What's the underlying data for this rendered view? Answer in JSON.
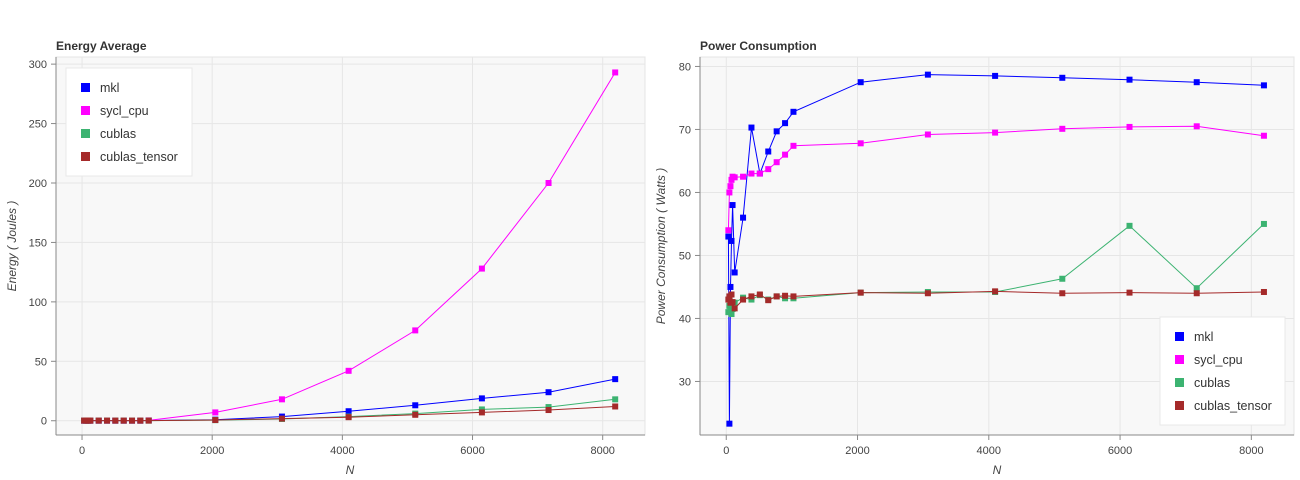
{
  "chart_data": [
    {
      "type": "line",
      "title": "Energy Average",
      "xlabel": "N",
      "ylabel": "Energy ( Joules )",
      "xlim": [
        -400,
        8650
      ],
      "ylim": [
        -12,
        306
      ],
      "xticks": [
        0,
        2000,
        4000,
        6000,
        8000
      ],
      "yticks": [
        0,
        50,
        100,
        150,
        200,
        250,
        300
      ],
      "grid": true,
      "legend_position": "top-left",
      "series": [
        {
          "name": "mkl",
          "color": "#0000ff",
          "x": [
            32,
            64,
            96,
            128,
            256,
            384,
            512,
            640,
            768,
            896,
            1024,
            2048,
            3072,
            4096,
            5120,
            6144,
            7168,
            8192
          ],
          "y": [
            0.1,
            0.1,
            0.1,
            0.1,
            0.1,
            0.1,
            0.1,
            0.1,
            0.1,
            0.1,
            0.2,
            0.9,
            3.5,
            8.0,
            13.0,
            18.8,
            24.0,
            35.0
          ]
        },
        {
          "name": "sycl_cpu",
          "color": "#ff00ff",
          "x": [
            32,
            64,
            96,
            128,
            256,
            384,
            512,
            640,
            768,
            896,
            1024,
            2048,
            3072,
            4096,
            5120,
            6144,
            7168,
            8192
          ],
          "y": [
            0.1,
            0.1,
            0.1,
            0.1,
            0.1,
            0.1,
            0.1,
            0.1,
            0.1,
            0.1,
            0.3,
            7.0,
            18.0,
            42.0,
            76.0,
            128.0,
            200.0,
            293.0
          ]
        },
        {
          "name": "cublas",
          "color": "#3cb371",
          "x": [
            32,
            64,
            96,
            128,
            256,
            384,
            512,
            640,
            768,
            896,
            1024,
            2048,
            3072,
            4096,
            5120,
            6144,
            7168,
            8192
          ],
          "y": [
            0.1,
            0.1,
            0.1,
            0.1,
            0.1,
            0.1,
            0.1,
            0.1,
            0.1,
            0.1,
            0.1,
            0.5,
            1.5,
            3.5,
            6.0,
            9.5,
            11.5,
            18.0
          ]
        },
        {
          "name": "cublas_tensor",
          "color": "#a52a2a",
          "x": [
            32,
            64,
            96,
            128,
            256,
            384,
            512,
            640,
            768,
            896,
            1024,
            2048,
            3072,
            4096,
            5120,
            6144,
            7168,
            8192
          ],
          "y": [
            0.1,
            0.1,
            0.1,
            0.1,
            0.1,
            0.1,
            0.1,
            0.1,
            0.1,
            0.1,
            0.1,
            0.6,
            1.8,
            3.0,
            5.0,
            7.0,
            9.0,
            12.0
          ]
        }
      ]
    },
    {
      "type": "line",
      "title": "Power Consumption",
      "xlabel": "N",
      "ylabel": "Power Consumption ( Watts )",
      "xlim": [
        -400,
        8650
      ],
      "ylim": [
        21.5,
        81.5
      ],
      "xticks": [
        0,
        2000,
        4000,
        6000,
        8000
      ],
      "yticks": [
        30,
        40,
        50,
        60,
        70,
        80
      ],
      "grid": true,
      "legend_position": "bottom-right",
      "series": [
        {
          "name": "mkl",
          "color": "#0000ff",
          "x": [
            32,
            48,
            64,
            80,
            96,
            128,
            256,
            384,
            512,
            640,
            768,
            896,
            1024,
            2048,
            3072,
            4096,
            5120,
            6144,
            7168,
            8192
          ],
          "y": [
            53.0,
            23.3,
            45.0,
            52.3,
            58.0,
            47.3,
            56.0,
            70.3,
            63.0,
            66.5,
            69.7,
            71.0,
            72.8,
            77.5,
            78.7,
            78.5,
            78.2,
            77.9,
            77.5,
            77.0
          ]
        },
        {
          "name": "sycl_cpu",
          "color": "#ff00ff",
          "x": [
            32,
            48,
            64,
            80,
            96,
            128,
            256,
            384,
            512,
            640,
            768,
            896,
            1024,
            2048,
            3072,
            4096,
            5120,
            6144,
            7168,
            8192
          ],
          "y": [
            54.0,
            60.0,
            61.0,
            62.0,
            62.5,
            62.4,
            62.5,
            63.0,
            63.0,
            63.7,
            64.8,
            66.0,
            67.4,
            67.8,
            69.2,
            69.5,
            70.1,
            70.4,
            70.5,
            69.0
          ]
        },
        {
          "name": "cublas",
          "color": "#3cb371",
          "x": [
            32,
            48,
            64,
            80,
            96,
            128,
            256,
            384,
            512,
            640,
            768,
            896,
            1024,
            2048,
            3072,
            4096,
            5120,
            6144,
            7168,
            8192
          ],
          "y": [
            41.0,
            42.0,
            41.3,
            40.7,
            41.5,
            42.5,
            43.3,
            43.0,
            43.7,
            43.0,
            43.5,
            43.2,
            43.2,
            44.1,
            44.2,
            44.2,
            46.3,
            54.7,
            44.8,
            55.0
          ]
        },
        {
          "name": "cublas_tensor",
          "color": "#a52a2a",
          "x": [
            32,
            48,
            64,
            80,
            96,
            128,
            256,
            384,
            512,
            640,
            768,
            896,
            1024,
            2048,
            3072,
            4096,
            5120,
            6144,
            7168,
            8192
          ],
          "y": [
            43.0,
            43.5,
            42.5,
            43.8,
            42.6,
            41.6,
            43.0,
            43.5,
            43.8,
            42.9,
            43.5,
            43.6,
            43.5,
            44.1,
            44.0,
            44.3,
            44.0,
            44.1,
            44.0,
            44.2
          ]
        }
      ]
    }
  ]
}
